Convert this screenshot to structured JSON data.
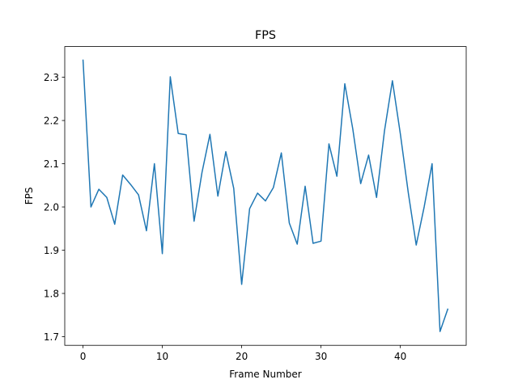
{
  "chart_data": {
    "type": "line",
    "title": "FPS",
    "xlabel": "Frame Number",
    "ylabel": "FPS",
    "xlim": [
      -2.3,
      48.3
    ],
    "ylim": [
      1.68,
      2.371
    ],
    "xticks": [
      0,
      10,
      20,
      30,
      40
    ],
    "yticks": [
      1.7,
      1.8,
      1.9,
      2.0,
      2.1,
      2.2,
      2.3
    ],
    "grid": false,
    "line_color": "#1f77b4",
    "series": [
      {
        "x": [
          0,
          1,
          2,
          3,
          4,
          5,
          6,
          7,
          8,
          9,
          10,
          11,
          12,
          13,
          14,
          15,
          16,
          17,
          18,
          19,
          20,
          21,
          22,
          23,
          24,
          25,
          26,
          27,
          28,
          29,
          30,
          31,
          32,
          33,
          34,
          35,
          36,
          37,
          38,
          39,
          40,
          41,
          42,
          43,
          44,
          45,
          46
        ],
        "values": [
          2.341,
          2.0,
          2.041,
          2.022,
          1.96,
          2.074,
          2.052,
          2.028,
          1.945,
          2.1,
          1.892,
          2.301,
          2.17,
          2.167,
          1.967,
          2.08,
          2.168,
          2.025,
          2.128,
          2.043,
          1.821,
          1.996,
          2.032,
          2.014,
          2.045,
          2.125,
          1.963,
          1.914,
          2.048,
          1.916,
          1.921,
          2.146,
          2.071,
          2.285,
          2.181,
          2.054,
          2.12,
          2.022,
          2.176,
          2.292,
          2.169,
          2.033,
          1.912,
          2.0,
          2.1,
          1.712,
          1.765
        ]
      }
    ]
  }
}
